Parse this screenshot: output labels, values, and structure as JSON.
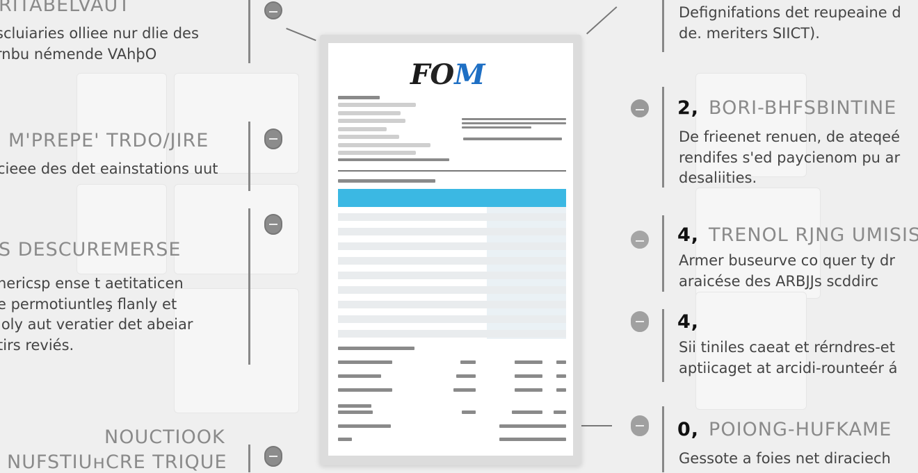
{
  "left_sections": [
    {
      "title": "RITABELVAUT",
      "body": [
        "scluiaries olliee nur dlie des",
        "rnbu némende VAhþO"
      ]
    },
    {
      "title": "M'PREPE' TRDO/JIRE",
      "body": [
        "cieee des det eainstations uut"
      ]
    },
    {
      "title": "S DESCUREMERSE",
      "body": [
        "hericsp ense t aetitaticen",
        "e permotiuntleş flanly et",
        "loly aut veratier det abeiar",
        "tirs reviés."
      ]
    },
    {
      "title": "NOUCTIOOK",
      "title2": "NUFSTIUʜCRE TRIQUE"
    }
  ],
  "right_sections": [
    {
      "body": [
        "Defignifations det reupeaine d",
        "de. meriters SIICT)."
      ]
    },
    {
      "number": "2,",
      "title": "BORI-BHFSBINTINE",
      "body": [
        "De frieenet renuen, de ateqeé",
        "rendifes s'ed paycienom pu ar",
        "desaliities."
      ]
    },
    {
      "number": "4,",
      "title": "TRENOL RJNG UMISIS",
      "body": [
        "Armer buseurve co quer ty dr",
        "araicése des ARBJJs scddirc"
      ]
    },
    {
      "number": "4,",
      "title": "",
      "body": [
        "Sii tiniles caeat et rérndres-et",
        "aptiicaget at arcidi-rounteér á"
      ]
    },
    {
      "number": "0,",
      "title": "POIONG-HUFKAME",
      "body": [
        "Gessote a foies net diraciech"
      ]
    }
  ],
  "document": {
    "logo": "FOM",
    "header_color": "#3bb8e3"
  },
  "icons": [
    "info-icon",
    "toggle-icon",
    "toggle-icon",
    "toggle-icon",
    "info-icon",
    "info-icon",
    "toggle-icon",
    "toggle-icon"
  ]
}
